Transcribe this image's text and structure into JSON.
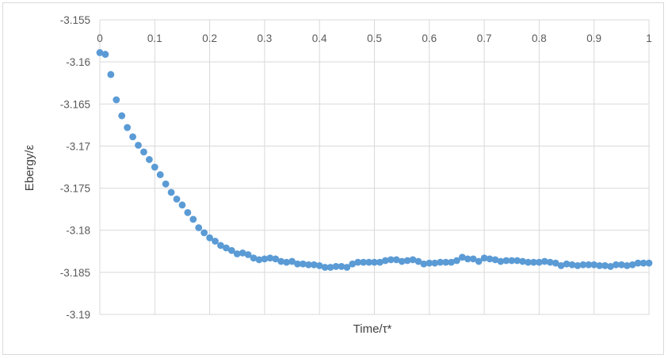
{
  "chart_data": {
    "type": "scatter",
    "title": "",
    "xlabel": "Time/τ*",
    "ylabel": "Ebergy/ε",
    "xlim": [
      0,
      1
    ],
    "ylim": [
      -3.19,
      -3.155
    ],
    "x_ticks": [
      "0",
      "0.1",
      "0.2",
      "0.3",
      "0.4",
      "0.5",
      "0.6",
      "0.7",
      "0.8",
      "0.9",
      "1"
    ],
    "y_ticks": [
      "-3.155",
      "-3.16",
      "-3.165",
      "-3.17",
      "-3.175",
      "-3.18",
      "-3.185",
      "-3.19"
    ],
    "x_tick_values": [
      0,
      0.1,
      0.2,
      0.3,
      0.4,
      0.5,
      0.6,
      0.7,
      0.8,
      0.9,
      1
    ],
    "y_tick_values": [
      -3.155,
      -3.16,
      -3.165,
      -3.17,
      -3.175,
      -3.18,
      -3.185,
      -3.19
    ],
    "x_axis_position": "top",
    "grid": true,
    "legend": "none",
    "marker_color": "#5b9bd5",
    "series": [
      {
        "x": [
          0,
          0.01,
          0.02,
          0.03,
          0.04,
          0.05,
          0.06,
          0.07,
          0.08,
          0.09,
          0.1,
          0.11,
          0.12,
          0.13,
          0.14,
          0.15,
          0.16,
          0.17,
          0.18,
          0.19,
          0.2,
          0.21,
          0.22,
          0.23,
          0.24,
          0.25,
          0.26,
          0.27,
          0.28,
          0.29,
          0.3,
          0.31,
          0.32,
          0.33,
          0.34,
          0.35,
          0.36,
          0.37,
          0.38,
          0.39,
          0.4,
          0.41,
          0.42,
          0.43,
          0.44,
          0.45,
          0.46,
          0.47,
          0.48,
          0.49,
          0.5,
          0.51,
          0.52,
          0.53,
          0.54,
          0.55,
          0.56,
          0.57,
          0.58,
          0.59,
          0.6,
          0.61,
          0.62,
          0.63,
          0.64,
          0.65,
          0.66,
          0.67,
          0.68,
          0.69,
          0.7,
          0.71,
          0.72,
          0.73,
          0.74,
          0.75,
          0.76,
          0.77,
          0.78,
          0.79,
          0.8,
          0.81,
          0.82,
          0.83,
          0.84,
          0.85,
          0.86,
          0.87,
          0.88,
          0.89,
          0.9,
          0.91,
          0.92,
          0.93,
          0.94,
          0.95,
          0.96,
          0.97,
          0.98,
          0.99,
          1
        ],
        "y": [
          -3.1589,
          -3.1591,
          -3.1615,
          -3.1645,
          -3.1664,
          -3.1678,
          -3.1689,
          -3.1699,
          -3.1707,
          -3.1716,
          -3.1725,
          -3.1734,
          -3.1745,
          -3.1755,
          -3.1763,
          -3.177,
          -3.1779,
          -3.1787,
          -3.1797,
          -3.1803,
          -3.1809,
          -3.1813,
          -3.1818,
          -3.1821,
          -3.1824,
          -3.1828,
          -3.1827,
          -3.1829,
          -3.1833,
          -3.1835,
          -3.1834,
          -3.1833,
          -3.1834,
          -3.1837,
          -3.1838,
          -3.1837,
          -3.184,
          -3.184,
          -3.1841,
          -3.1841,
          -3.1842,
          -3.1844,
          -3.1844,
          -3.1843,
          -3.1843,
          -3.1844,
          -3.184,
          -3.1838,
          -3.1838,
          -3.1838,
          -3.1838,
          -3.1838,
          -3.1836,
          -3.1835,
          -3.1835,
          -3.1837,
          -3.1836,
          -3.1835,
          -3.1837,
          -3.184,
          -3.1839,
          -3.1839,
          -3.1838,
          -3.1838,
          -3.1838,
          -3.1836,
          -3.1832,
          -3.1834,
          -3.1834,
          -3.1837,
          -3.1833,
          -3.1834,
          -3.1835,
          -3.1837,
          -3.1836,
          -3.1836,
          -3.1836,
          -3.1837,
          -3.1838,
          -3.1838,
          -3.1838,
          -3.1837,
          -3.1838,
          -3.1839,
          -3.1842,
          -3.184,
          -3.1841,
          -3.1842,
          -3.1841,
          -3.1841,
          -3.1841,
          -3.1842,
          -3.1842,
          -3.1843,
          -3.1841,
          -3.1841,
          -3.1842,
          -3.1841,
          -3.1839,
          -3.1839,
          -3.1839
        ]
      }
    ]
  }
}
